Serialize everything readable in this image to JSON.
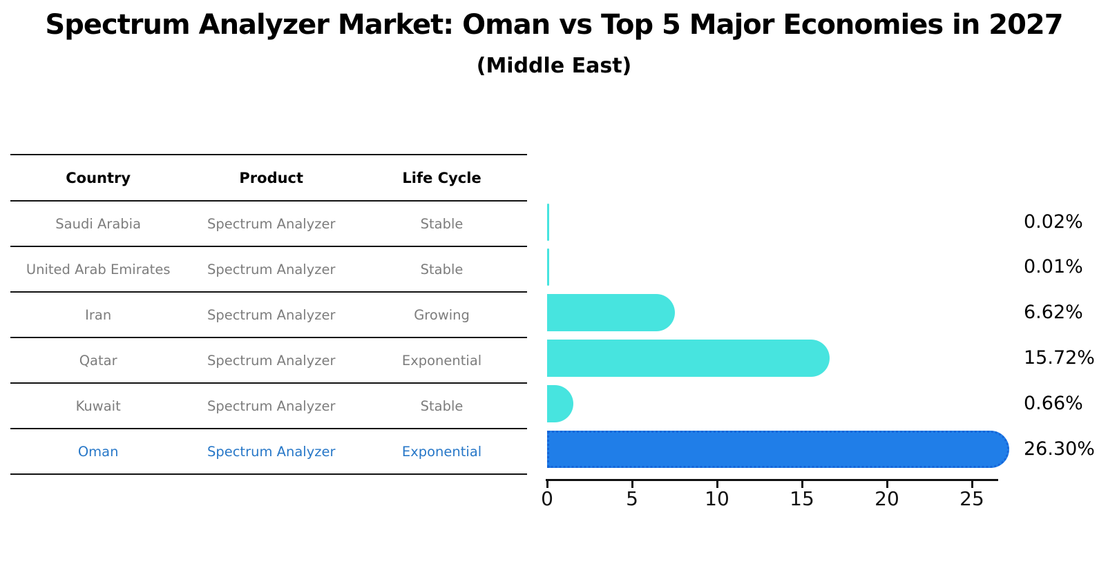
{
  "title": "Spectrum Analyzer Market: Oman vs Top 5 Major Economies in 2027",
  "subtitle": "(Middle East)",
  "table": {
    "headers": [
      "Country",
      "Product",
      "Life Cycle"
    ],
    "rows": [
      {
        "country": "Saudi Arabia",
        "product": "Spectrum Analyzer",
        "life_cycle": "Stable",
        "value_label": "0.02%"
      },
      {
        "country": "United Arab Emirates",
        "product": "Spectrum Analyzer",
        "life_cycle": "Stable",
        "value_label": "0.01%"
      },
      {
        "country": "Iran",
        "product": "Spectrum Analyzer",
        "life_cycle": "Growing",
        "value_label": "6.62%"
      },
      {
        "country": "Qatar",
        "product": "Spectrum Analyzer",
        "life_cycle": "Exponential",
        "value_label": "15.72%"
      },
      {
        "country": "Kuwait",
        "product": "Spectrum Analyzer",
        "life_cycle": "Stable",
        "value_label": "0.66%"
      },
      {
        "country": "Oman",
        "product": "Spectrum Analyzer",
        "life_cycle": "Exponential",
        "value_label": "26.30%",
        "highlighted": true
      }
    ]
  },
  "chart_data": {
    "type": "bar",
    "orientation": "horizontal",
    "title": "Spectrum Analyzer Market: Oman vs Top 5 Major Economies in 2027",
    "subtitle": "(Middle East)",
    "categories": [
      "Saudi Arabia",
      "United Arab Emirates",
      "Iran",
      "Qatar",
      "Kuwait",
      "Oman"
    ],
    "values": [
      0.02,
      0.01,
      6.62,
      15.72,
      0.66,
      26.3
    ],
    "value_labels": [
      "0.02%",
      "0.01%",
      "6.62%",
      "15.72%",
      "0.66%",
      "26.30%"
    ],
    "life_cycles": [
      "Stable",
      "Stable",
      "Growing",
      "Exponential",
      "Stable",
      "Exponential"
    ],
    "highlight_index": 5,
    "highlight_category": "Oman",
    "xlabel": "",
    "ylabel": "",
    "x_ticks": [
      0,
      5,
      10,
      15,
      20,
      25
    ],
    "xlim": [
      0,
      27
    ],
    "grid": false,
    "legend": false
  },
  "colors": {
    "background": "#ffffff",
    "bar_cyan": "#47E4DF",
    "bar_blue": "#207EE8",
    "bar_blue_border": "#1565D8",
    "highlight_text": "#2878C8",
    "table_text": "#7d7d7d",
    "heading_text": "#000000",
    "line": "#111111"
  }
}
